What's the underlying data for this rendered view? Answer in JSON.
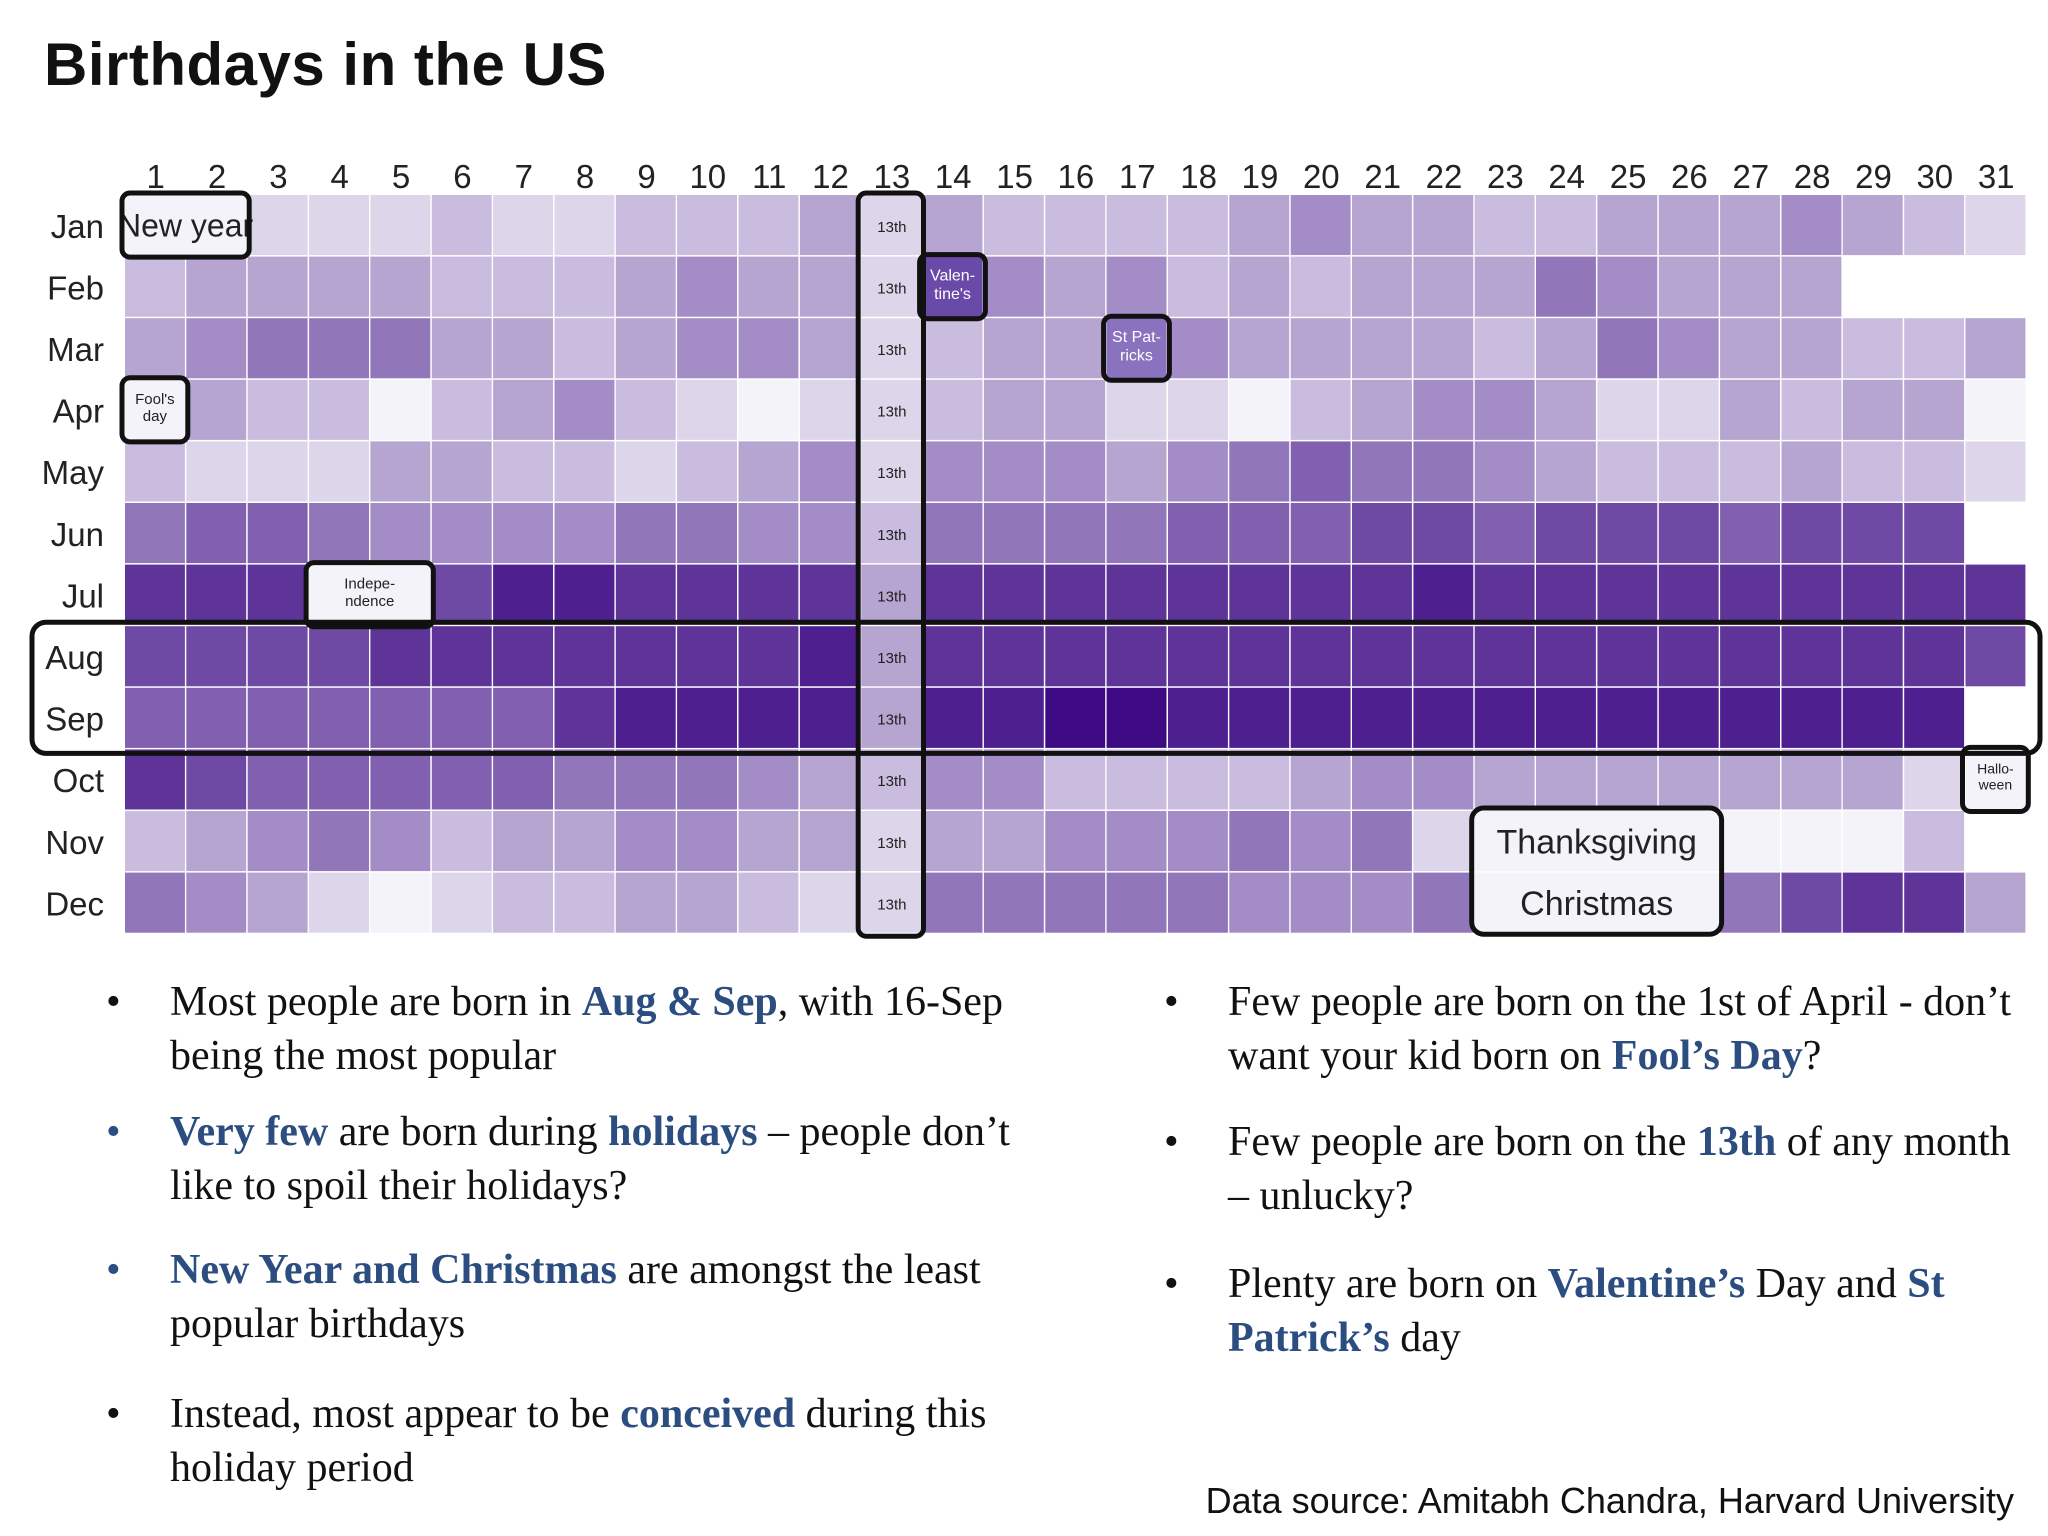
{
  "title": "Birthdays in the US",
  "chart_data": {
    "type": "heatmap",
    "title": "Birthdays in the US",
    "x_labels": [
      "1",
      "2",
      "3",
      "4",
      "5",
      "6",
      "7",
      "8",
      "9",
      "10",
      "11",
      "12",
      "13",
      "14",
      "15",
      "16",
      "17",
      "18",
      "19",
      "20",
      "21",
      "22",
      "23",
      "24",
      "25",
      "26",
      "27",
      "28",
      "29",
      "30",
      "31"
    ],
    "y_labels": [
      "Jan",
      "Feb",
      "Mar",
      "Apr",
      "May",
      "Jun",
      "Jul",
      "Aug",
      "Sep",
      "Oct",
      "Nov",
      "Dec"
    ],
    "value_scale": "relative birth popularity, 0 = least popular, 10 = most popular",
    "colors": {
      "low": "#f4f3f9",
      "high": "#3d0a84"
    },
    "values": [
      [
        0,
        0,
        1,
        1,
        1,
        2,
        1,
        1,
        2,
        2,
        2,
        3,
        1,
        3,
        2,
        2,
        2,
        2,
        3,
        4,
        3,
        3,
        2,
        2,
        3,
        3,
        3,
        4,
        3,
        2,
        1
      ],
      [
        2,
        3,
        3,
        3,
        3,
        2,
        2,
        2,
        3,
        4,
        3,
        3,
        1,
        5,
        4,
        3,
        4,
        2,
        3,
        2,
        3,
        3,
        3,
        5,
        4,
        3,
        3,
        3,
        null,
        null,
        null
      ],
      [
        3,
        4,
        5,
        5,
        5,
        3,
        3,
        2,
        3,
        4,
        4,
        3,
        1,
        2,
        3,
        3,
        5,
        4,
        3,
        3,
        3,
        3,
        2,
        3,
        5,
        4,
        3,
        3,
        2,
        2,
        3
      ],
      [
        0,
        3,
        2,
        2,
        0,
        2,
        3,
        4,
        2,
        1,
        0,
        1,
        1,
        2,
        3,
        3,
        1,
        1,
        0,
        2,
        3,
        4,
        4,
        3,
        1,
        1,
        3,
        2,
        3,
        3,
        0
      ],
      [
        2,
        1,
        1,
        1,
        3,
        3,
        2,
        2,
        1,
        2,
        3,
        4,
        1,
        4,
        4,
        4,
        3,
        4,
        5,
        6,
        5,
        5,
        4,
        3,
        2,
        2,
        2,
        3,
        2,
        2,
        1
      ],
      [
        5,
        6,
        6,
        5,
        4,
        4,
        4,
        4,
        5,
        5,
        4,
        4,
        2,
        5,
        5,
        5,
        5,
        6,
        6,
        6,
        7,
        7,
        6,
        7,
        7,
        7,
        6,
        7,
        7,
        7,
        null
      ],
      [
        8,
        8,
        8,
        0,
        0,
        7,
        9,
        9,
        8,
        8,
        8,
        8,
        3,
        8,
        8,
        8,
        8,
        8,
        8,
        8,
        8,
        9,
        8,
        8,
        8,
        8,
        8,
        8,
        8,
        8,
        8
      ],
      [
        7,
        7,
        7,
        7,
        8,
        8,
        8,
        8,
        8,
        8,
        8,
        9,
        3,
        8,
        8,
        8,
        8,
        8,
        8,
        8,
        8,
        8,
        8,
        8,
        8,
        8,
        8,
        8,
        8,
        8,
        7
      ],
      [
        6,
        6,
        6,
        6,
        6,
        6,
        6,
        8,
        9,
        9,
        9,
        9,
        3,
        9,
        9,
        10,
        10,
        9,
        9,
        9,
        9,
        9,
        9,
        9,
        9,
        9,
        9,
        9,
        9,
        9,
        null
      ],
      [
        8,
        7,
        6,
        6,
        6,
        6,
        6,
        5,
        5,
        5,
        4,
        3,
        2,
        4,
        4,
        2,
        2,
        2,
        2,
        3,
        4,
        4,
        3,
        3,
        3,
        3,
        3,
        3,
        3,
        1,
        0
      ],
      [
        2,
        3,
        4,
        5,
        4,
        2,
        3,
        3,
        4,
        4,
        3,
        3,
        1,
        3,
        3,
        4,
        4,
        4,
        5,
        4,
        5,
        1,
        0,
        0,
        0,
        0,
        0,
        0,
        0,
        2,
        null
      ],
      [
        5,
        4,
        3,
        1,
        0,
        1,
        2,
        2,
        3,
        3,
        2,
        1,
        1,
        5,
        5,
        5,
        5,
        5,
        4,
        4,
        4,
        5,
        0,
        0,
        0,
        0,
        5,
        7,
        8,
        8,
        3
      ]
    ],
    "annotations": [
      {
        "label": "New year",
        "month": "Jan",
        "days": [
          1,
          2
        ]
      },
      {
        "label": "Valen-tine's",
        "month": "Feb",
        "days": [
          14,
          14
        ]
      },
      {
        "label": "St Pat-ricks",
        "month": "Mar",
        "days": [
          17,
          17
        ]
      },
      {
        "label": "Fool's day",
        "month": "Apr",
        "days": [
          1,
          1
        ]
      },
      {
        "label": "Indepe-ndence",
        "month": "Jul",
        "days": [
          4,
          5
        ]
      },
      {
        "label": "Hallo-ween",
        "month": "Oct",
        "days": [
          31,
          31
        ]
      },
      {
        "label": "Thanksgiving",
        "month": "Nov",
        "days": [
          23,
          26
        ]
      },
      {
        "label": "Christmas",
        "month": "Dec",
        "days": [
          23,
          26
        ]
      }
    ],
    "thirteenth_label": "13th"
  },
  "bullets_left": [
    [
      {
        "t": "Most people are born in "
      },
      {
        "t": "Aug & Sep",
        "h": true
      },
      {
        "t": ", with 16-Sep being the most popular"
      }
    ],
    [
      {
        "t": "Very few",
        "h": true
      },
      {
        "t": " are born during "
      },
      {
        "t": "holidays",
        "h": true
      },
      {
        "t": " – people don’t like to spoil their holidays?"
      }
    ],
    [
      {
        "t": "New Year and Christmas",
        "h": true
      },
      {
        "t": " are amongst the least popular birthdays"
      }
    ],
    [
      {
        "t": "Instead, most appear to be "
      },
      {
        "t": "conceived",
        "h": true
      },
      {
        "t": " during this holiday period"
      }
    ]
  ],
  "bullets_right": [
    [
      {
        "t": "Few people are born on the 1st of April - don’t want your kid born on "
      },
      {
        "t": "Fool’s Day",
        "h": true
      },
      {
        "t": "?"
      }
    ],
    [
      {
        "t": "Few people are born on the "
      },
      {
        "t": "13th",
        "h": true
      },
      {
        "t": " of any month – unlucky?"
      }
    ],
    [
      {
        "t": "Plenty are born on "
      },
      {
        "t": "Valentine’s",
        "h": true
      },
      {
        "t": " Day and "
      },
      {
        "t": "St Patrick’s",
        "h": true
      },
      {
        "t": " day"
      }
    ]
  ],
  "bullet_symbol": "•",
  "source": "Data source: Amitabh Chandra, Harvard University"
}
